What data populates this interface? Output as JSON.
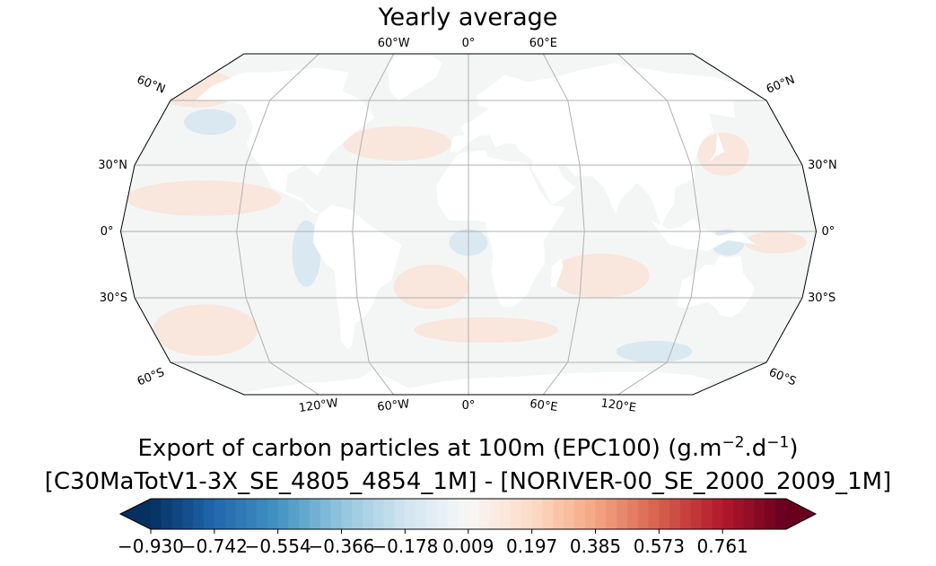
{
  "chart_data": {
    "type": "heatmap",
    "title": "Yearly average",
    "projection": "Robinson (global map)",
    "map": {
      "lat_labels_left": [
        "60°N",
        "30°N",
        "0°",
        "30°S",
        "60°S"
      ],
      "lat_labels_right": [
        "60°N",
        "30°N",
        "0°",
        "30°S",
        "60°S"
      ],
      "lon_labels_top": [
        "60°W",
        "0°",
        "60°E"
      ],
      "lon_labels_bottom": [
        "120°W",
        "60°W",
        "0°",
        "60°E",
        "120°E"
      ],
      "gridlines": true,
      "field_description_colors": {
        "ocean_near_zero": "#f4f6f6",
        "positive_tint": "#fbe0d3",
        "negative_tint": "#cfe3ef",
        "land": "#ffffff"
      }
    },
    "colorbar": {
      "label_line1_prefix": "Export of carbon particles at 100m (EPC100) (g.m",
      "label_exp1": "−2",
      "label_mid": ".d",
      "label_exp2": "−1",
      "label_suffix": ")",
      "label_line2": "[C30MaTotV1-3X_SE_4805_4854_1M] - [NORIVER-00_SE_2000_2009_1M]",
      "vmin": -0.93,
      "vmax": 0.949,
      "cmap": "RdBu_r",
      "extend": "both",
      "ticks": [
        -0.93,
        -0.742,
        -0.554,
        -0.366,
        -0.178,
        0.009,
        0.197,
        0.385,
        0.573,
        0.761
      ],
      "tick_labels": [
        "−0.930",
        "−0.742",
        "−0.554",
        "−0.366",
        "−0.178",
        "0.009",
        "0.197",
        "0.385",
        "0.573",
        "0.761"
      ]
    }
  }
}
